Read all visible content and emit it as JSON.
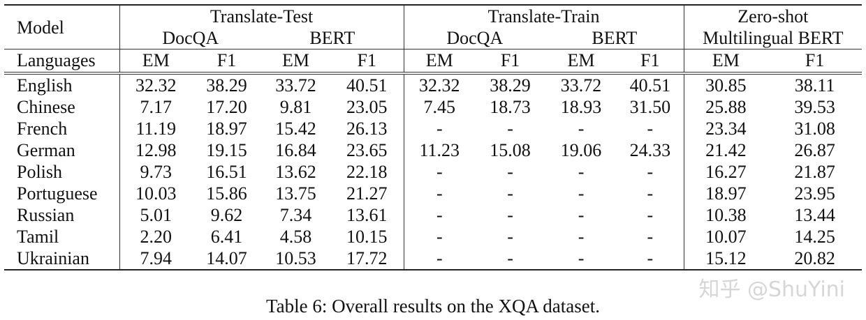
{
  "table": {
    "model_label": "Model",
    "languages_label": "Languages",
    "group_headers": [
      "Translate-Test",
      "Translate-Train",
      "Zero-shot"
    ],
    "sub_headers": [
      "DocQA",
      "BERT",
      "DocQA",
      "BERT",
      "Multilingual BERT"
    ],
    "metrics": [
      "EM",
      "F1",
      "EM",
      "F1",
      "EM",
      "F1",
      "EM",
      "F1",
      "EM",
      "F1"
    ],
    "rows": [
      {
        "language": "English",
        "values": [
          "32.32",
          "38.29",
          "33.72",
          "40.51",
          "32.32",
          "38.29",
          "33.72",
          "40.51",
          "30.85",
          "38.11"
        ]
      },
      {
        "language": "Chinese",
        "values": [
          "7.17",
          "17.20",
          "9.81",
          "23.05",
          "7.45",
          "18.73",
          "18.93",
          "31.50",
          "25.88",
          "39.53"
        ]
      },
      {
        "language": "French",
        "values": [
          "11.19",
          "18.97",
          "15.42",
          "26.13",
          "-",
          "-",
          "-",
          "-",
          "23.34",
          "31.08"
        ]
      },
      {
        "language": "German",
        "values": [
          "12.98",
          "19.15",
          "16.84",
          "23.65",
          "11.23",
          "15.08",
          "19.06",
          "24.33",
          "21.42",
          "26.87"
        ]
      },
      {
        "language": "Polish",
        "values": [
          "9.73",
          "16.51",
          "13.62",
          "22.18",
          "-",
          "-",
          "-",
          "-",
          "16.27",
          "21.87"
        ]
      },
      {
        "language": "Portuguese",
        "values": [
          "10.03",
          "15.86",
          "13.75",
          "21.27",
          "-",
          "-",
          "-",
          "-",
          "18.97",
          "23.95"
        ]
      },
      {
        "language": "Russian",
        "values": [
          "5.01",
          "9.62",
          "7.34",
          "13.61",
          "-",
          "-",
          "-",
          "-",
          "10.38",
          "13.44"
        ]
      },
      {
        "language": "Tamil",
        "values": [
          "2.20",
          "6.41",
          "4.58",
          "10.15",
          "-",
          "-",
          "-",
          "-",
          "10.07",
          "14.25"
        ]
      },
      {
        "language": "Ukrainian",
        "values": [
          "7.94",
          "14.07",
          "10.53",
          "17.72",
          "-",
          "-",
          "-",
          "-",
          "15.12",
          "20.82"
        ]
      }
    ]
  },
  "caption": "Table 6: Overall results on the XQA dataset.",
  "watermark": "知乎 @ShuYini"
}
